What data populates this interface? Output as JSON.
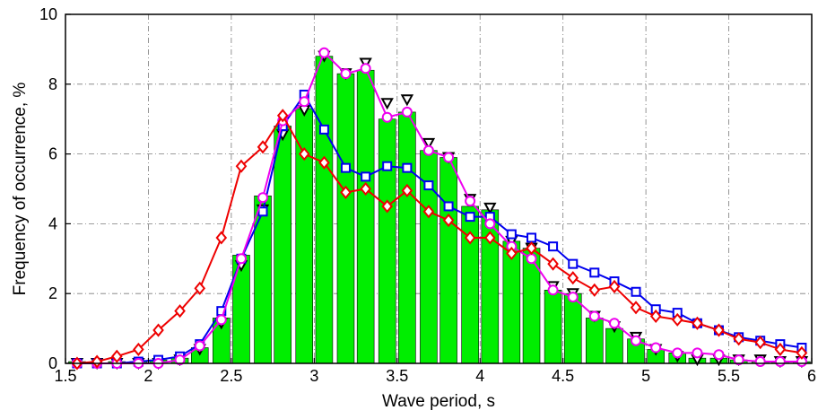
{
  "chart_data": {
    "type": "bar",
    "xlabel": "Wave period, s",
    "ylabel": "Frequency of occurrence, %",
    "xlim": [
      1.5,
      6
    ],
    "ylim": [
      0,
      10
    ],
    "x_ticks": [
      "1.5",
      "2",
      "2.5",
      "3",
      "3.5",
      "4",
      "4.5",
      "5",
      "5.5",
      "6"
    ],
    "y_ticks": [
      "0",
      "2",
      "4",
      "6",
      "8",
      "10"
    ],
    "grid": true,
    "bar_color": "#00ee00",
    "bars": {
      "x": [
        1.57,
        1.69,
        1.81,
        1.94,
        2.06,
        2.19,
        2.31,
        2.44,
        2.56,
        2.69,
        2.81,
        2.94,
        3.06,
        3.19,
        3.31,
        3.44,
        3.56,
        3.69,
        3.81,
        3.94,
        4.06,
        4.19,
        4.31,
        4.44,
        4.56,
        4.69,
        4.81,
        4.94,
        5.06,
        5.19,
        5.31,
        5.44,
        5.56,
        5.69,
        5.81,
        5.94
      ],
      "values": [
        0.05,
        0.0,
        0.05,
        0.05,
        0.1,
        0.15,
        0.45,
        1.3,
        3.1,
        4.8,
        6.8,
        7.3,
        8.8,
        8.3,
        8.4,
        7.0,
        7.2,
        6.1,
        5.9,
        4.5,
        4.4,
        3.5,
        3.3,
        2.1,
        2.0,
        1.3,
        1.0,
        0.7,
        0.4,
        0.3,
        0.15,
        0.15,
        0.1,
        0.05,
        0.05,
        0.05
      ]
    },
    "series": [
      {
        "marker": "triangle-down",
        "color": "#000000",
        "line": false,
        "x": [
          1.57,
          1.69,
          1.81,
          1.94,
          2.06,
          2.19,
          2.31,
          2.44,
          2.56,
          2.69,
          2.81,
          2.94,
          3.06,
          3.19,
          3.31,
          3.44,
          3.56,
          3.69,
          3.81,
          3.94,
          4.06,
          4.19,
          4.31,
          4.44,
          4.56,
          4.69,
          4.81,
          4.94,
          5.06,
          5.19,
          5.31,
          5.44,
          5.56,
          5.69,
          5.81,
          5.94
        ],
        "y": [
          0.0,
          0.0,
          0.0,
          0.0,
          0.0,
          0.1,
          0.4,
          1.15,
          2.8,
          4.4,
          6.55,
          7.25,
          8.8,
          8.3,
          8.6,
          7.45,
          7.55,
          6.3,
          5.9,
          4.7,
          4.45,
          3.5,
          3.3,
          2.2,
          2.0,
          1.35,
          1.05,
          0.75,
          0.4,
          0.2,
          0.1,
          0.1,
          0.1,
          0.1,
          0.05,
          0.05
        ]
      },
      {
        "marker": "square",
        "color": "#0000ee",
        "line": true,
        "x": [
          1.57,
          1.69,
          1.81,
          1.94,
          2.06,
          2.19,
          2.31,
          2.44,
          2.56,
          2.69,
          2.81,
          2.94,
          3.06,
          3.19,
          3.31,
          3.44,
          3.56,
          3.69,
          3.81,
          3.94,
          4.06,
          4.19,
          4.31,
          4.44,
          4.56,
          4.69,
          4.81,
          4.94,
          5.06,
          5.19,
          5.31,
          5.44,
          5.56,
          5.69,
          5.81,
          5.94
        ],
        "y": [
          0.0,
          0.0,
          0.0,
          0.05,
          0.1,
          0.2,
          0.55,
          1.5,
          3.0,
          4.35,
          6.8,
          7.7,
          6.7,
          5.6,
          5.35,
          5.65,
          5.6,
          5.1,
          4.5,
          4.2,
          4.2,
          3.7,
          3.6,
          3.35,
          2.85,
          2.6,
          2.35,
          2.05,
          1.55,
          1.45,
          1.15,
          0.95,
          0.75,
          0.65,
          0.55,
          0.45
        ]
      },
      {
        "marker": "circle",
        "color": "#ee00ee",
        "line": true,
        "x": [
          1.57,
          1.69,
          1.81,
          1.94,
          2.06,
          2.19,
          2.31,
          2.44,
          2.56,
          2.69,
          2.81,
          2.94,
          3.06,
          3.19,
          3.31,
          3.44,
          3.56,
          3.69,
          3.81,
          3.94,
          4.06,
          4.19,
          4.31,
          4.44,
          4.56,
          4.69,
          4.81,
          4.94,
          5.06,
          5.19,
          5.31,
          5.44,
          5.56,
          5.69,
          5.81,
          5.94
        ],
        "y": [
          0.0,
          0.0,
          0.0,
          0.0,
          0.0,
          0.1,
          0.5,
          1.25,
          3.0,
          4.75,
          6.95,
          7.5,
          8.9,
          8.3,
          8.45,
          7.05,
          7.2,
          6.1,
          5.9,
          4.65,
          4.0,
          3.35,
          3.0,
          2.1,
          1.9,
          1.35,
          1.15,
          0.65,
          0.45,
          0.3,
          0.3,
          0.25,
          0.1,
          0.05,
          0.05,
          0.05
        ]
      },
      {
        "marker": "diamond",
        "color": "#ee0000",
        "line": true,
        "x": [
          1.57,
          1.69,
          1.81,
          1.94,
          2.06,
          2.19,
          2.31,
          2.44,
          2.56,
          2.69,
          2.81,
          2.94,
          3.06,
          3.19,
          3.31,
          3.44,
          3.56,
          3.69,
          3.81,
          3.94,
          4.06,
          4.19,
          4.31,
          4.44,
          4.56,
          4.69,
          4.81,
          4.94,
          5.06,
          5.19,
          5.31,
          5.44,
          5.56,
          5.69,
          5.81,
          5.94
        ],
        "y": [
          0.0,
          0.05,
          0.2,
          0.4,
          0.95,
          1.5,
          2.15,
          3.6,
          5.65,
          6.2,
          7.1,
          6.0,
          5.75,
          4.9,
          5.0,
          4.5,
          4.95,
          4.35,
          4.1,
          3.6,
          3.6,
          3.15,
          3.3,
          2.85,
          2.45,
          2.1,
          2.2,
          1.6,
          1.35,
          1.25,
          1.15,
          0.95,
          0.7,
          0.6,
          0.4,
          0.3
        ]
      }
    ]
  }
}
